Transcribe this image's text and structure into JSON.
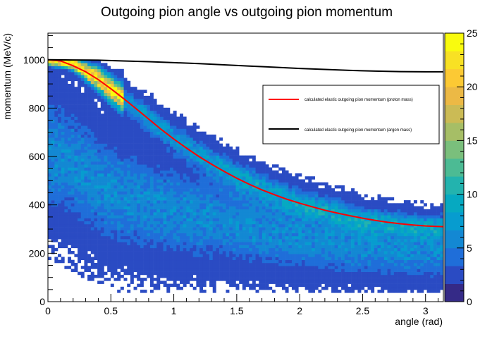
{
  "chart_data": {
    "type": "heatmap",
    "title": "Outgoing pion angle vs outgoing pion momentum",
    "xlabel": "angle (rad)",
    "ylabel": "momentum (MeV/c)",
    "xlim": [
      0,
      3.1416
    ],
    "ylim": [
      0,
      1110
    ],
    "x_ticks": [
      0,
      0.5,
      1,
      1.5,
      2,
      2.5,
      3
    ],
    "x_tick_labels": [
      "0",
      "0.5",
      "1",
      "1.5",
      "2",
      "2.5",
      "3"
    ],
    "y_ticks": [
      0,
      200,
      400,
      600,
      800,
      1000
    ],
    "y_tick_labels": [
      "0",
      "200",
      "400",
      "600",
      "800",
      "1000"
    ],
    "colorbar": {
      "range": [
        0,
        25
      ],
      "ticks": [
        0,
        5,
        10,
        15,
        20,
        25
      ],
      "tick_labels": [
        "0",
        "5",
        "10",
        "15",
        "20",
        "25"
      ],
      "palette": [
        "#352a87",
        "#2a4bc3",
        "#1f6ed9",
        "#1388d3",
        "#079ccf",
        "#06a9c1",
        "#23b3ae",
        "#4cbb94",
        "#7abf7c",
        "#a6be66",
        "#cbbb55",
        "#ecb945",
        "#fcc934",
        "#f8e124",
        "#f9fb0e"
      ]
    },
    "grid": false,
    "legend": {
      "placement": "center-right",
      "entries": [
        {
          "label": "calculated elastic outgoing pion momentum (proton mass)",
          "color": "#ff0000"
        },
        {
          "label": "calculated elastic outgoing pion momentum (argon mass)",
          "color": "#000000"
        }
      ]
    },
    "density_bands": [
      {
        "name": "elastic band",
        "center": [
          [
            0,
            1000
          ],
          [
            0.2,
            985
          ],
          [
            0.4,
            920
          ],
          [
            0.6,
            840
          ],
          [
            0.8,
            760
          ],
          [
            1.0,
            680
          ],
          [
            1.2,
            610
          ],
          [
            1.5,
            520
          ],
          [
            2.0,
            410
          ],
          [
            2.5,
            340
          ],
          [
            3.0,
            310
          ]
        ],
        "width": [
          20,
          25,
          45,
          55,
          60,
          60,
          60,
          60,
          60,
          55,
          50
        ],
        "peak": 24
      },
      {
        "name": "inelastic region",
        "center": [
          [
            0.1,
            600
          ],
          [
            0.5,
            450
          ],
          [
            1.0,
            370
          ],
          [
            1.5,
            320
          ],
          [
            2.0,
            260
          ],
          [
            2.5,
            220
          ],
          [
            3.0,
            200
          ]
        ],
        "width": [
          250,
          230,
          200,
          170,
          140,
          120,
          110
        ],
        "peak": 6
      }
    ],
    "series": [
      {
        "name": "calculated elastic outgoing pion momentum (proton mass)",
        "color": "#ff0000",
        "x": [
          0,
          0.1,
          0.2,
          0.3,
          0.4,
          0.5,
          0.6,
          0.7,
          0.8,
          0.9,
          1.0,
          1.1,
          1.2,
          1.3,
          1.4,
          1.5,
          1.6,
          1.7,
          1.8,
          1.9,
          2.0,
          2.1,
          2.2,
          2.3,
          2.4,
          2.5,
          2.6,
          2.7,
          2.8,
          2.9,
          3.0,
          3.14
        ],
        "values": [
          1000,
          995,
          975,
          950,
          918,
          880,
          840,
          798,
          755,
          712,
          672,
          635,
          600,
          568,
          538,
          510,
          485,
          462,
          442,
          423,
          407,
          392,
          378,
          366,
          355,
          345,
          336,
          328,
          322,
          317,
          313,
          310
        ]
      },
      {
        "name": "calculated elastic outgoing pion momentum (argon mass)",
        "color": "#000000",
        "x": [
          0,
          0.2,
          0.4,
          0.6,
          0.8,
          1.0,
          1.2,
          1.4,
          1.6,
          1.8,
          2.0,
          2.2,
          2.4,
          2.6,
          2.8,
          3.0,
          3.14
        ],
        "values": [
          1000,
          999,
          998,
          995,
          992,
          988,
          984,
          979,
          974,
          969,
          964,
          960,
          956,
          953,
          951,
          950,
          950
        ]
      }
    ]
  }
}
